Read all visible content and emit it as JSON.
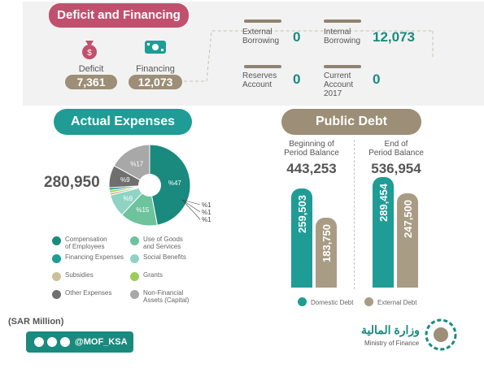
{
  "deficit_financing": {
    "title": "Deficit and Financing",
    "deficit_label": "Deficit",
    "deficit_value": "7,361",
    "financing_label": "Financing",
    "financing_value": "12,073",
    "external_borrowing_label_1": "External",
    "external_borrowing_label_2": "Borrowing",
    "external_borrowing_value": "0",
    "internal_borrowing_label_1": "Internal",
    "internal_borrowing_label_2": "Borrowing",
    "internal_borrowing_value": "12,073",
    "reserves_label_1": "Reserves",
    "reserves_label_2": "Account",
    "reserves_value": "0",
    "current_label_1": "Current",
    "current_label_2": "Account",
    "current_label_3": "2017",
    "current_value": "0"
  },
  "actual_expenses": {
    "title": "Actual Expenses",
    "total": "280,950",
    "legend": [
      {
        "label_1": "Compensation",
        "label_2": "of Employees",
        "color": "#1a8a7e"
      },
      {
        "label_1": "Use of Goods",
        "label_2": "and Services",
        "color": "#6cc39c"
      },
      {
        "label_1": "Financing Expenses",
        "label_2": "",
        "color": "#1f9c95"
      },
      {
        "label_1": "Social Benefits",
        "label_2": "",
        "color": "#8fd3c4"
      },
      {
        "label_1": "Subsidies",
        "label_2": "",
        "color": "#c9c29a"
      },
      {
        "label_1": "Grants",
        "label_2": "",
        "color": "#9acd5a"
      },
      {
        "label_1": "Other Expenses",
        "label_2": "",
        "color": "#6f6f6f"
      },
      {
        "label_1": "Non-Financial",
        "label_2": "Assets (Capital)",
        "color": "#a8a8a8"
      }
    ]
  },
  "public_debt": {
    "title": "Public Debt",
    "beginning_label_1": "Beginning of",
    "beginning_label_2": "Period Balance",
    "beginning_value": "443,253",
    "end_label_1": "End of",
    "end_label_2": "Period Balance",
    "end_value": "536,954",
    "legend_domestic": "Domestic Debt",
    "legend_external": "External Debt",
    "color_domestic": "#1f9c95",
    "color_external": "#a89c84"
  },
  "footer": {
    "unit": "(SAR Million)",
    "handle": "@MOF_KSA",
    "ministry_ar": "وزارة المالية",
    "ministry_en": "Ministry of Finance"
  },
  "chart_data": [
    {
      "type": "pie",
      "title": "Actual Expenses",
      "total": 280950,
      "slices": [
        {
          "label": "%47",
          "value": 47,
          "color": "#1a8a7e"
        },
        {
          "label": "%15",
          "value": 15,
          "color": "#6cc39c"
        },
        {
          "label": "%9",
          "value": 9,
          "color": "#8fd3c4"
        },
        {
          "label": "%1",
          "value": 1,
          "color": "#c9c29a"
        },
        {
          "label": "%1",
          "value": 1,
          "color": "#9acd5a"
        },
        {
          "label": "%1",
          "value": 1,
          "color": "#1f9c95"
        },
        {
          "label": "%9",
          "value": 9,
          "color": "#6f6f6f"
        },
        {
          "label": "%17",
          "value": 17,
          "color": "#a8a8a8"
        }
      ]
    },
    {
      "type": "bar",
      "title": "Public Debt",
      "categories": [
        "Beginning of Period Balance",
        "End of Period Balance"
      ],
      "series": [
        {
          "name": "Domestic Debt",
          "values": [
            259503,
            289454
          ],
          "labels": [
            "259,503",
            "289,454"
          ]
        },
        {
          "name": "External Debt",
          "values": [
            183750,
            247500
          ],
          "labels": [
            "183,750",
            "247,500"
          ]
        }
      ],
      "ylim": [
        0,
        320000
      ]
    }
  ]
}
